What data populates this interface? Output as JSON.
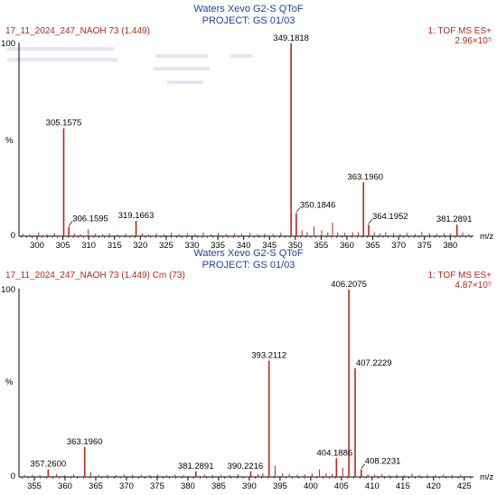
{
  "colors": {
    "peak": "#b22a1c",
    "header_blue": "#1f3fa8",
    "header_red": "#b22a1c",
    "axis": "#000000"
  },
  "chart_data": [
    {
      "type": "bar",
      "instrument": "Waters Xevo G2-S QToF",
      "project": "PROJECT: GS 01/03",
      "sample": "17_11_2024_247_NAOH 73 (1.449)",
      "mode": "1: TOF MS ES+",
      "intensity": "2.96×10⁵",
      "ylabel": "%",
      "xlabel": "m/z",
      "y_top_label": "100",
      "y_zero_label": "0",
      "xlim": [
        296.5,
        384.5
      ],
      "ylim": [
        0,
        100
      ],
      "xticks": [
        300,
        305,
        310,
        315,
        320,
        325,
        330,
        335,
        340,
        345,
        350,
        355,
        360,
        365,
        370,
        375,
        380
      ],
      "labeled_peaks": [
        {
          "mz": "349.1818",
          "x": 349.1818,
          "y": 100
        },
        {
          "mz": "305.1575",
          "x": 305.1575,
          "y": 56
        },
        {
          "mz": "363.1960",
          "x": 363.196,
          "y": 28
        },
        {
          "mz": "350.1846",
          "x": 350.1846,
          "y": 12
        },
        {
          "mz": "306.1595",
          "x": 306.1595,
          "y": 5
        },
        {
          "mz": "319.1663",
          "x": 319.1663,
          "y": 8
        },
        {
          "mz": "364.1952",
          "x": 364.1952,
          "y": 6
        },
        {
          "mz": "381.2891",
          "x": 381.2891,
          "y": 6
        }
      ],
      "minor_peaks": [
        {
          "x": 297.3,
          "y": 1.2
        },
        {
          "x": 298.6,
          "y": 1
        },
        {
          "x": 300.3,
          "y": 2
        },
        {
          "x": 301.9,
          "y": 1
        },
        {
          "x": 303.4,
          "y": 1.5
        },
        {
          "x": 307.2,
          "y": 1.5
        },
        {
          "x": 308.4,
          "y": 1
        },
        {
          "x": 309.9,
          "y": 3.5
        },
        {
          "x": 311.3,
          "y": 1.2
        },
        {
          "x": 312.7,
          "y": 1
        },
        {
          "x": 314.0,
          "y": 1.6
        },
        {
          "x": 315.6,
          "y": 1
        },
        {
          "x": 317.2,
          "y": 1.3
        },
        {
          "x": 320.4,
          "y": 1.6
        },
        {
          "x": 321.6,
          "y": 1
        },
        {
          "x": 323.1,
          "y": 1.5
        },
        {
          "x": 324.6,
          "y": 1.1
        },
        {
          "x": 326.0,
          "y": 1.8
        },
        {
          "x": 327.5,
          "y": 1
        },
        {
          "x": 329.1,
          "y": 1.6
        },
        {
          "x": 330.6,
          "y": 1.2
        },
        {
          "x": 332.2,
          "y": 1.9
        },
        {
          "x": 333.7,
          "y": 1
        },
        {
          "x": 335.1,
          "y": 1.8
        },
        {
          "x": 336.6,
          "y": 1.2
        },
        {
          "x": 338.2,
          "y": 1.4
        },
        {
          "x": 339.6,
          "y": 1.2
        },
        {
          "x": 341.2,
          "y": 1.6
        },
        {
          "x": 342.7,
          "y": 1
        },
        {
          "x": 344.1,
          "y": 1.3
        },
        {
          "x": 345.7,
          "y": 1.2
        },
        {
          "x": 347.2,
          "y": 1.8
        },
        {
          "x": 351.3,
          "y": 3
        },
        {
          "x": 352.3,
          "y": 2
        },
        {
          "x": 353.6,
          "y": 5
        },
        {
          "x": 355.1,
          "y": 3
        },
        {
          "x": 356.3,
          "y": 2
        },
        {
          "x": 357.2,
          "y": 7
        },
        {
          "x": 358.2,
          "y": 2
        },
        {
          "x": 359.6,
          "y": 1.8
        },
        {
          "x": 361.1,
          "y": 2
        },
        {
          "x": 362.2,
          "y": 2
        },
        {
          "x": 365.3,
          "y": 2
        },
        {
          "x": 366.4,
          "y": 1.5
        },
        {
          "x": 367.5,
          "y": 2.2
        },
        {
          "x": 369.0,
          "y": 1.5
        },
        {
          "x": 370.3,
          "y": 1.2
        },
        {
          "x": 371.6,
          "y": 1.8
        },
        {
          "x": 373.2,
          "y": 1
        },
        {
          "x": 374.5,
          "y": 2.3
        },
        {
          "x": 376.0,
          "y": 1.5
        },
        {
          "x": 377.4,
          "y": 1.2
        },
        {
          "x": 378.8,
          "y": 1.6
        },
        {
          "x": 380.0,
          "y": 1.4
        },
        {
          "x": 382.4,
          "y": 2
        },
        {
          "x": 383.6,
          "y": 1
        }
      ]
    },
    {
      "type": "bar",
      "instrument": "Waters Xevo G2-S QToF",
      "project": "PROJECT: GS 01/03",
      "sample": "17_11_2024_247_NAOH 73 (1.449) Cm (73)",
      "mode": "1: TOF MS ES+",
      "intensity": "4.87×10⁵",
      "ylabel": "%",
      "xlabel": "m/z",
      "y_top_label": "100",
      "y_zero_label": "0",
      "xlim": [
        352.5,
        426.5
      ],
      "ylim": [
        0,
        100
      ],
      "xticks": [
        355,
        360,
        365,
        370,
        375,
        380,
        385,
        390,
        395,
        400,
        405,
        410,
        415,
        420,
        425
      ],
      "labeled_peaks": [
        {
          "mz": "406.2075",
          "x": 406.2075,
          "y": 100
        },
        {
          "mz": "393.2112",
          "x": 393.2112,
          "y": 62
        },
        {
          "mz": "407.2229",
          "x": 407.2229,
          "y": 58
        },
        {
          "mz": "363.1960",
          "x": 363.196,
          "y": 16
        },
        {
          "mz": "404.1886",
          "x": 404.1886,
          "y": 10
        },
        {
          "mz": "357.2600",
          "x": 357.26,
          "y": 4
        },
        {
          "mz": "381.2891",
          "x": 381.2891,
          "y": 3
        },
        {
          "mz": "390.2216",
          "x": 390.2216,
          "y": 3
        },
        {
          "mz": "408.2231",
          "x": 408.2231,
          "y": 4
        }
      ],
      "minor_peaks": [
        {
          "x": 353.4,
          "y": 1
        },
        {
          "x": 354.7,
          "y": 1.2
        },
        {
          "x": 355.9,
          "y": 1
        },
        {
          "x": 358.6,
          "y": 1.5
        },
        {
          "x": 359.9,
          "y": 1
        },
        {
          "x": 361.4,
          "y": 1.2
        },
        {
          "x": 364.2,
          "y": 2.5
        },
        {
          "x": 365.5,
          "y": 1
        },
        {
          "x": 366.9,
          "y": 1.2
        },
        {
          "x": 368.3,
          "y": 1
        },
        {
          "x": 369.6,
          "y": 1.3
        },
        {
          "x": 371.0,
          "y": 1
        },
        {
          "x": 372.4,
          "y": 1.2
        },
        {
          "x": 373.8,
          "y": 1
        },
        {
          "x": 375.1,
          "y": 1.3
        },
        {
          "x": 376.5,
          "y": 1
        },
        {
          "x": 377.9,
          "y": 1.2
        },
        {
          "x": 379.3,
          "y": 1
        },
        {
          "x": 382.7,
          "y": 1.2
        },
        {
          "x": 384.0,
          "y": 1
        },
        {
          "x": 385.4,
          "y": 1.2
        },
        {
          "x": 386.8,
          "y": 1
        },
        {
          "x": 388.2,
          "y": 1.5
        },
        {
          "x": 391.4,
          "y": 1.5
        },
        {
          "x": 392.2,
          "y": 2
        },
        {
          "x": 394.2,
          "y": 6
        },
        {
          "x": 395.4,
          "y": 2
        },
        {
          "x": 396.5,
          "y": 1.5
        },
        {
          "x": 397.8,
          "y": 1.2
        },
        {
          "x": 399.0,
          "y": 1.5
        },
        {
          "x": 400.2,
          "y": 2
        },
        {
          "x": 401.4,
          "y": 4
        },
        {
          "x": 402.5,
          "y": 2
        },
        {
          "x": 403.5,
          "y": 1.5
        },
        {
          "x": 405.2,
          "y": 5
        },
        {
          "x": 409.3,
          "y": 1.5
        },
        {
          "x": 410.4,
          "y": 1.2
        },
        {
          "x": 411.6,
          "y": 1.5
        },
        {
          "x": 412.8,
          "y": 1
        },
        {
          "x": 414.0,
          "y": 1.2
        },
        {
          "x": 415.2,
          "y": 1
        },
        {
          "x": 416.5,
          "y": 1.8
        },
        {
          "x": 417.7,
          "y": 1
        },
        {
          "x": 419.0,
          "y": 1.2
        },
        {
          "x": 420.3,
          "y": 1
        },
        {
          "x": 421.6,
          "y": 1.2
        },
        {
          "x": 423.0,
          "y": 1
        },
        {
          "x": 424.4,
          "y": 1.2
        }
      ]
    }
  ]
}
